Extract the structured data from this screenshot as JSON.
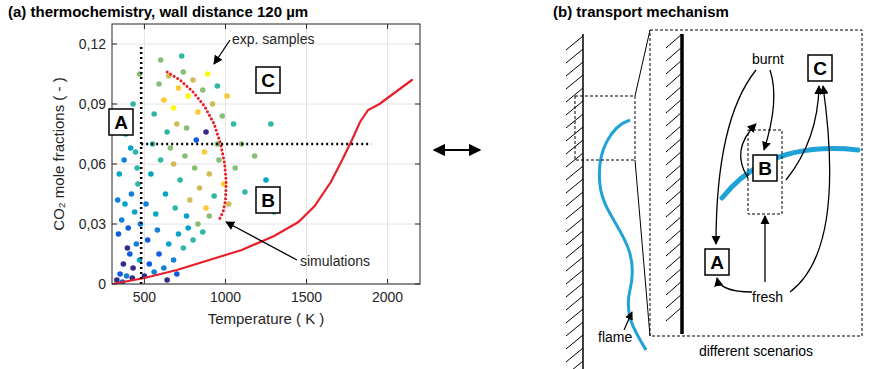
{
  "chart_data": {
    "type": "scatter",
    "title": "(a) thermochemistry, wall distance 120 µm",
    "x_label": "Temperature ( K )",
    "y_label": "CO₂ mole fractions ( - )",
    "xlim": [
      300,
      2200
    ],
    "ylim": [
      0,
      0.13
    ],
    "xticks": [
      500,
      1000,
      1500,
      2000
    ],
    "yticks": [
      0,
      {
        "value": 0.03,
        "label": "0,03"
      },
      {
        "value": 0.06,
        "label": "0,06"
      },
      {
        "value": 0.09,
        "label": "0,09"
      },
      {
        "value": 0.12,
        "label": "0,12"
      }
    ],
    "grid": true,
    "regions": [
      "A",
      "B",
      "C"
    ],
    "reference_lines": [
      {
        "x": 480,
        "y": [
          0,
          0.12
        ]
      },
      {
        "y": 0.07,
        "x": [
          480,
          1900
        ]
      }
    ],
    "series": [
      {
        "name": "exp. samples",
        "type": "scatter",
        "marker": "circle",
        "x": [
          330,
          350,
          370,
          390,
          410,
          430,
          450,
          470,
          340,
          360,
          380,
          400,
          420,
          440,
          460,
          345,
          375,
          415,
          455,
          395,
          425,
          365,
          475,
          335,
          445,
          385,
          430,
          470,
          500,
          530,
          560,
          590,
          620,
          650,
          680,
          710,
          740,
          770,
          800,
          830,
          860,
          520,
          580,
          640,
          700,
          900,
          510,
          540,
          570,
          600,
          630,
          660,
          690,
          720,
          750,
          780,
          810,
          840,
          870,
          900,
          930,
          960,
          990,
          1020,
          1060,
          1120,
          1180,
          1250,
          1300,
          550,
          760,
          880,
          950,
          680,
          560,
          590,
          620,
          650,
          680,
          710,
          740,
          770,
          800,
          830,
          860,
          890,
          920,
          950,
          980,
          1010,
          1050,
          700,
          760,
          640,
          1100,
          600,
          880,
          820,
          1280,
          730
        ],
        "values": [
          0.002,
          0.005,
          0.01,
          0.004,
          0.015,
          0.008,
          0.02,
          0.012,
          0.025,
          0.032,
          0.04,
          0.028,
          0.045,
          0.036,
          0.05,
          0.055,
          0.062,
          0.068,
          0.058,
          0.018,
          0.003,
          0.001,
          0.03,
          0.042,
          0.066,
          0.075,
          0.09,
          0.105,
          0.004,
          0.01,
          0.006,
          0.015,
          0.008,
          0.02,
          0.012,
          0.025,
          0.018,
          0.028,
          0.022,
          0.03,
          0.026,
          0.022,
          0.027,
          0.002,
          0.005,
          0.034,
          0.04,
          0.055,
          0.035,
          0.062,
          0.045,
          0.068,
          0.038,
          0.052,
          0.064,
          0.042,
          0.058,
          0.048,
          0.066,
          0.055,
          0.044,
          0.062,
          0.05,
          0.04,
          0.058,
          0.046,
          0.064,
          0.052,
          0.036,
          0.07,
          0.034,
          0.038,
          0.07,
          0.06,
          0.085,
          0.1,
          0.092,
          0.104,
          0.088,
          0.098,
          0.106,
          0.094,
          0.102,
          0.086,
          0.097,
          0.105,
          0.09,
          0.099,
          0.084,
          0.094,
          0.08,
          0.08,
          0.078,
          0.076,
          0.07,
          0.112,
          0.076,
          0.072,
          0.08,
          0.114
        ],
        "colors": [
          "#352a87",
          "#0f5cdd",
          "#352a87",
          "#1481d6",
          "#0f5cdd",
          "#352a87",
          "#1481d6",
          "#06a4ca",
          "#0f5cdd",
          "#1481d6",
          "#06a4ca",
          "#0f5cdd",
          "#1481d6",
          "#06a4ca",
          "#2eb7a4",
          "#06a4ca",
          "#1481d6",
          "#06a4ca",
          "#2eb7a4",
          "#352a87",
          "#352a87",
          "#0f5cdd",
          "#1481d6",
          "#1481d6",
          "#2eb7a4",
          "#06a4ca",
          "#2eb7a4",
          "#87bf77",
          "#352a87",
          "#0f5cdd",
          "#1481d6",
          "#0f5cdd",
          "#1481d6",
          "#06a4ca",
          "#1481d6",
          "#06a4ca",
          "#2eb7a4",
          "#06a4ca",
          "#2eb7a4",
          "#87bf77",
          "#2eb7a4",
          "#0f5cdd",
          "#1481d6",
          "#352a87",
          "#0f5cdd",
          "#87bf77",
          "#1481d6",
          "#06a4ca",
          "#06a4ca",
          "#2eb7a4",
          "#06a4ca",
          "#87bf77",
          "#2eb7a4",
          "#2eb7a4",
          "#87bf77",
          "#d1bb59",
          "#87bf77",
          "#d1bb59",
          "#fec832",
          "#d1bb59",
          "#2eb7a4",
          "#87bf77",
          "#fec832",
          "#d1bb59",
          "#87bf77",
          "#2eb7a4",
          "#87bf77",
          "#06a4ca",
          "#2eb7a4",
          "#2eb7a4",
          "#06a4ca",
          "#fec832",
          "#87bf77",
          "#d1bb59",
          "#2eb7a4",
          "#87bf77",
          "#fec832",
          "#d1bb59",
          "#f9fb0e",
          "#fec832",
          "#87bf77",
          "#f9fb0e",
          "#d1bb59",
          "#fec832",
          "#87bf77",
          "#f9fb0e",
          "#d1bb59",
          "#2eb7a4",
          "#87bf77",
          "#fec832",
          "#2eb7a4",
          "#d1bb59",
          "#87bf77",
          "#2eb7a4",
          "#87bf77",
          "#87bf77",
          "#352a87",
          "#0f5cdd",
          "#2eb7a4",
          "#2eb7a4"
        ]
      },
      {
        "name": "simulations",
        "type": "line",
        "color": "#e8202a",
        "line_style": "solid",
        "x": [
          300,
          500,
          700,
          900,
          1100,
          1300,
          1450,
          1550,
          1650,
          1720,
          1780,
          1830,
          1880,
          1950,
          2050,
          2150
        ],
        "values": [
          0,
          0.003,
          0.007,
          0.012,
          0.017,
          0.024,
          0.031,
          0.039,
          0.051,
          0.062,
          0.072,
          0.081,
          0.087,
          0.09,
          0.096,
          0.102
        ]
      },
      {
        "type": "line",
        "color": "#e8202a",
        "line_style": "dotted",
        "x": [
          640,
          720,
          800,
          870,
          930,
          970,
          995,
          1005,
          1000,
          985,
          960
        ],
        "values": [
          0.106,
          0.102,
          0.096,
          0.089,
          0.08,
          0.07,
          0.06,
          0.05,
          0.042,
          0.036,
          0.032
        ]
      }
    ]
  },
  "diagram": {
    "title": "(b) transport mechanism",
    "flame_label": "flame",
    "zoom_label": "different scenarios",
    "burnt_label": "burnt",
    "fresh_label": "fresh",
    "scenarios": [
      "A",
      "B",
      "C"
    ]
  }
}
